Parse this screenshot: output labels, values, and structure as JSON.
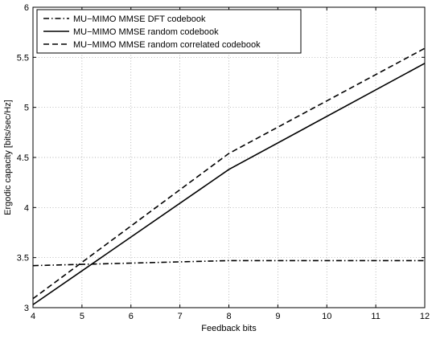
{
  "chart_data": {
    "type": "line",
    "title": "",
    "xlabel": "Feedback bits",
    "ylabel": "Ergodic capacity [bits/sec/Hz]",
    "xlim": [
      4,
      12
    ],
    "ylim": [
      3,
      6
    ],
    "xticks": [
      4,
      5,
      6,
      7,
      8,
      9,
      10,
      11,
      12
    ],
    "yticks": [
      3,
      3.5,
      4,
      4.5,
      5,
      5.5,
      6
    ],
    "xtick_labels": [
      "4",
      "5",
      "6",
      "7",
      "8",
      "9",
      "10",
      "11",
      "12"
    ],
    "ytick_labels": [
      "3",
      "3.5",
      "4",
      "4.5",
      "5",
      "5.5",
      "6"
    ],
    "grid": true,
    "legend_position": "top-left",
    "series": [
      {
        "name": "MU−MIMO MMSE DFT codebook",
        "style": "dash-dot",
        "color": "#000000",
        "x": [
          4,
          8,
          12
        ],
        "y": [
          3.42,
          3.47,
          3.47
        ]
      },
      {
        "name": "MU−MIMO MMSE random codebook",
        "style": "solid",
        "color": "#000000",
        "x": [
          4,
          8,
          12
        ],
        "y": [
          3.03,
          4.38,
          5.44
        ]
      },
      {
        "name": "MU−MIMO MMSE random correlated codebook",
        "style": "dashed",
        "color": "#000000",
        "x": [
          4,
          8,
          12
        ],
        "y": [
          3.09,
          4.54,
          5.59
        ]
      }
    ]
  }
}
